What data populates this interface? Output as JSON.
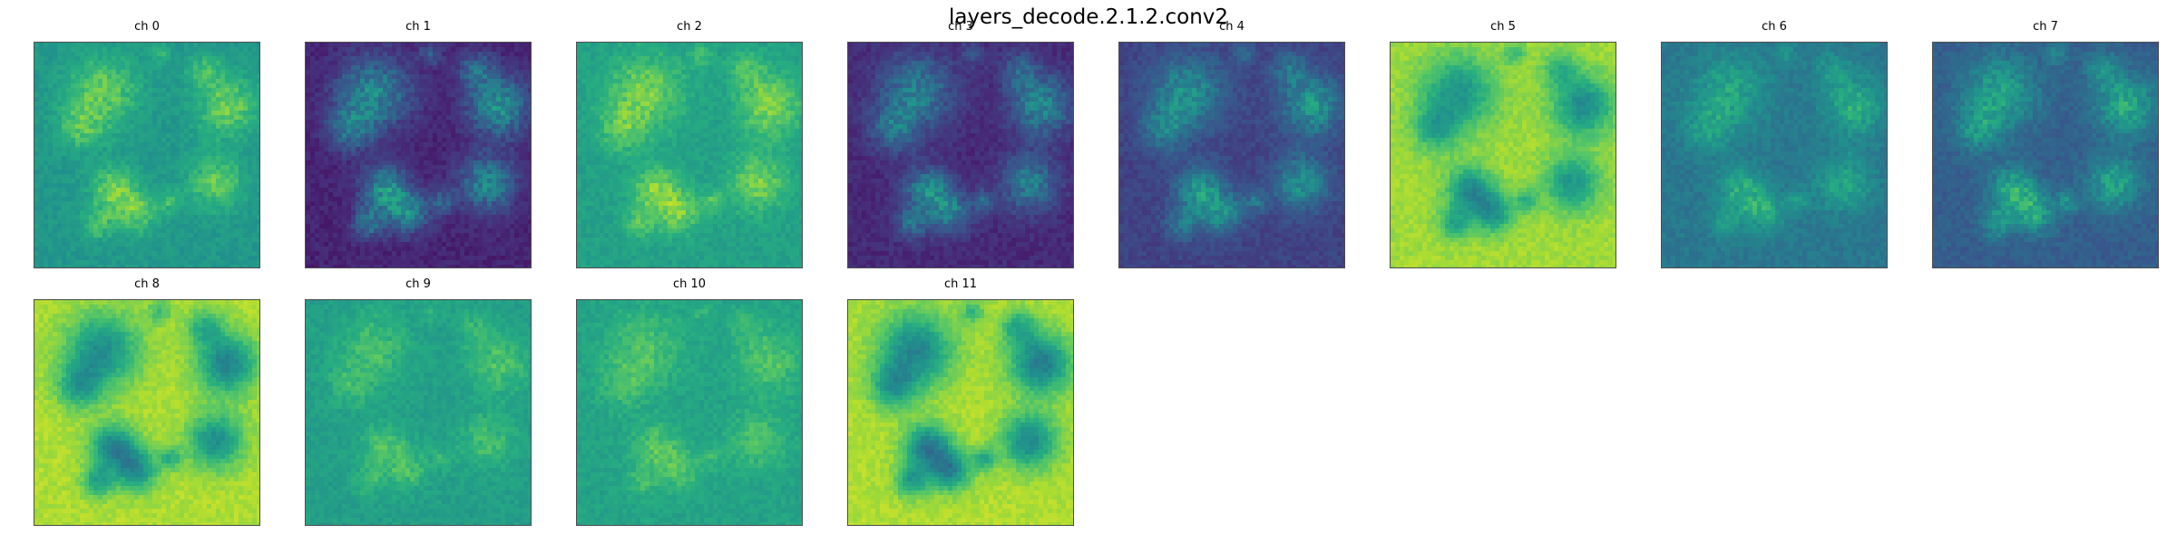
{
  "figure": {
    "title": "layers_decode.2.1.2.conv2"
  },
  "chart_data": {
    "type": "heatmap",
    "title": "layers_decode.2.1.2.conv2",
    "colormap": "viridis",
    "layout_grid": {
      "rows": 2,
      "cols": 8
    },
    "panels": [
      {
        "label": "ch 0",
        "base": 0.53,
        "contrast": 0.22,
        "hilite": 0.92,
        "seed": 11
      },
      {
        "label": "ch 1",
        "base": 0.1,
        "contrast": 0.25,
        "hilite": 0.72,
        "seed": 12
      },
      {
        "label": "ch 2",
        "base": 0.57,
        "contrast": 0.15,
        "hilite": 0.95,
        "seed": 13
      },
      {
        "label": "ch 3",
        "base": 0.12,
        "contrast": 0.3,
        "hilite": 0.66,
        "seed": 14
      },
      {
        "label": "ch 4",
        "base": 0.2,
        "contrast": 0.22,
        "hilite": 0.7,
        "seed": 15
      },
      {
        "label": "ch 5",
        "base": 0.86,
        "contrast": 0.42,
        "hilite": 0.92,
        "seed": 16
      },
      {
        "label": "ch 6",
        "base": 0.4,
        "contrast": 0.18,
        "hilite": 0.74,
        "seed": 17
      },
      {
        "label": "ch 7",
        "base": 0.3,
        "contrast": 0.25,
        "hilite": 0.78,
        "seed": 18
      },
      {
        "label": "ch 8",
        "base": 0.88,
        "contrast": 0.48,
        "hilite": 0.95,
        "seed": 19
      },
      {
        "label": "ch 9",
        "base": 0.56,
        "contrast": 0.22,
        "hilite": 0.8,
        "seed": 20
      },
      {
        "label": "ch 10",
        "base": 0.58,
        "contrast": 0.2,
        "hilite": 0.82,
        "seed": 21
      },
      {
        "label": "ch 11",
        "base": 0.88,
        "contrast": 0.52,
        "hilite": 0.97,
        "seed": 22
      }
    ]
  }
}
